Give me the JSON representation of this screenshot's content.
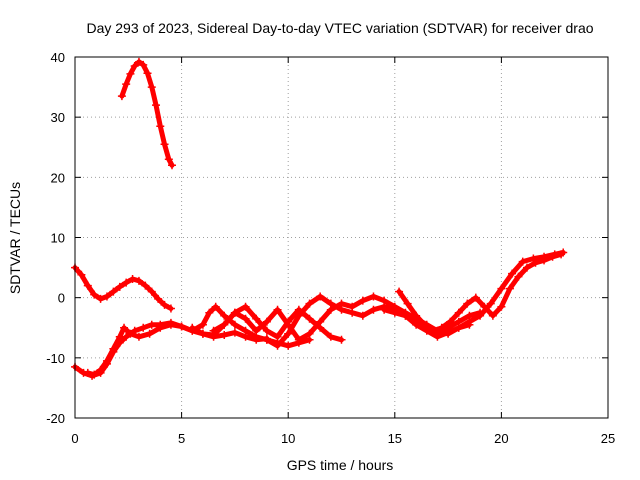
{
  "chart_data": {
    "type": "scatter",
    "title": "Day 293 of 2023, Sidereal Day-to-day VTEC variation (SDTVAR) for receiver drao",
    "xlabel": "GPS time / hours",
    "ylabel": "SDTVAR / TECUs",
    "xlim": [
      0,
      25
    ],
    "ylim": [
      -20,
      40
    ],
    "xticks": [
      0,
      5,
      10,
      15,
      20,
      25
    ],
    "yticks": [
      -20,
      -10,
      0,
      10,
      20,
      30,
      40
    ],
    "grid": true,
    "marker": "+",
    "color": "#ff0000",
    "series": [
      {
        "name": "arc-high",
        "x": [
          2.2,
          2.4,
          2.6,
          2.8,
          3.0,
          3.2,
          3.4,
          3.6,
          3.8,
          4.0,
          4.2,
          4.4,
          4.55
        ],
        "y": [
          33.5,
          35.5,
          37.2,
          38.5,
          39.2,
          38.7,
          37.3,
          35.0,
          32.0,
          28.5,
          25.5,
          23.0,
          22.0
        ]
      },
      {
        "name": "arc-early",
        "x": [
          0.0,
          0.3,
          0.6,
          0.9,
          1.2,
          1.5,
          1.8,
          2.1,
          2.4,
          2.7,
          3.0,
          3.3,
          3.6,
          3.9,
          4.2,
          4.5
        ],
        "y": [
          5.0,
          3.8,
          2.0,
          0.5,
          -0.2,
          0.2,
          1.0,
          1.8,
          2.5,
          3.1,
          2.8,
          2.0,
          1.0,
          -0.2,
          -1.2,
          -1.8
        ]
      },
      {
        "name": "arc-low-a",
        "x": [
          0.0,
          0.4,
          0.8,
          1.2,
          1.5,
          1.8,
          2.1,
          2.4,
          2.8,
          3.2,
          3.6,
          4.0,
          4.5,
          5.0,
          5.5,
          6.0,
          6.5,
          7.0,
          7.5,
          8.0,
          8.5,
          9.0
        ],
        "y": [
          -11.5,
          -12.5,
          -13.0,
          -12.5,
          -11.0,
          -9.0,
          -7.5,
          -6.5,
          -5.5,
          -5.0,
          -4.5,
          -4.5,
          -4.2,
          -4.8,
          -5.5,
          -6.0,
          -6.5,
          -6.2,
          -5.8,
          -6.5,
          -7.0,
          -6.8
        ]
      },
      {
        "name": "arc-low-b",
        "x": [
          0.6,
          0.9,
          1.2,
          1.5,
          1.8,
          2.1,
          2.3,
          2.6,
          3.0,
          3.5,
          4.0,
          4.5,
          5.0,
          5.5,
          6.0,
          6.3,
          6.6,
          7.0,
          7.5,
          8.0,
          8.5,
          9.0,
          9.5,
          10.0,
          10.5,
          11.0
        ],
        "y": [
          -12.5,
          -12.8,
          -12.0,
          -10.5,
          -8.5,
          -6.5,
          -5.0,
          -6.0,
          -6.5,
          -6.0,
          -5.0,
          -4.5,
          -4.8,
          -5.5,
          -4.5,
          -2.5,
          -1.5,
          -3.0,
          -4.5,
          -5.5,
          -6.5,
          -7.0,
          -7.5,
          -8.0,
          -7.5,
          -7.0
        ]
      },
      {
        "name": "arc-mid-a",
        "x": [
          5.5,
          6.0,
          6.5,
          7.0,
          7.5,
          8.0,
          8.5,
          9.0,
          9.5,
          10.0,
          10.5,
          11.0,
          11.5,
          12.0,
          12.5
        ],
        "y": [
          -5.0,
          -6.0,
          -6.2,
          -4.5,
          -2.5,
          -1.5,
          -3.5,
          -5.5,
          -6.5,
          -4.0,
          -2.0,
          -3.5,
          -5.0,
          -6.5,
          -7.0
        ]
      },
      {
        "name": "arc-mid-b",
        "x": [
          6.5,
          7.0,
          7.5,
          8.0,
          8.5,
          9.0,
          9.5,
          10.0,
          10.5,
          11.0,
          11.5,
          12.0,
          12.5,
          13.0,
          13.5,
          14.0,
          14.5,
          15.0,
          15.5,
          16.0,
          16.5,
          17.0,
          17.5,
          18.0,
          18.5,
          19.0
        ],
        "y": [
          -5.5,
          -4.5,
          -2.5,
          -3.5,
          -5.5,
          -4.0,
          -2.0,
          -4.5,
          -7.0,
          -6.0,
          -4.0,
          -2.0,
          -1.0,
          -1.5,
          -0.5,
          0.2,
          -0.5,
          -1.5,
          -2.5,
          -3.5,
          -4.5,
          -5.5,
          -5.0,
          -4.0,
          -3.0,
          -2.5
        ]
      },
      {
        "name": "arc-mid-c",
        "x": [
          9.0,
          9.5,
          10.0,
          10.5,
          11.0,
          11.5,
          12.0,
          12.5,
          13.0,
          13.5,
          14.0,
          14.5,
          15.0,
          15.5,
          16.0,
          16.5,
          17.0,
          17.5,
          18.0,
          18.5
        ],
        "y": [
          -7.0,
          -8.0,
          -6.0,
          -3.0,
          -1.0,
          0.2,
          -1.0,
          -2.0,
          -2.5,
          -3.0,
          -2.0,
          -1.5,
          -1.8,
          -3.0,
          -4.5,
          -5.5,
          -6.5,
          -5.8,
          -5.0,
          -4.5
        ]
      },
      {
        "name": "arc-late-a",
        "x": [
          14.5,
          15.0,
          15.5,
          16.0,
          16.5,
          17.0,
          17.5,
          18.0,
          18.5,
          19.0,
          19.5,
          20.0,
          20.5,
          21.0,
          21.5,
          22.0,
          22.5,
          22.9
        ],
        "y": [
          -2.0,
          -2.5,
          -3.0,
          -4.0,
          -5.0,
          -5.8,
          -6.0,
          -5.0,
          -4.0,
          -3.0,
          -1.0,
          1.5,
          4.0,
          6.0,
          6.5,
          6.8,
          7.2,
          7.5
        ]
      },
      {
        "name": "arc-late-b",
        "x": [
          15.2,
          15.6,
          16.0,
          16.4,
          16.8,
          17.2,
          17.6,
          18.0,
          18.4,
          18.8,
          19.2,
          19.6,
          20.0,
          20.4,
          20.8,
          21.2,
          21.6,
          22.0,
          22.4,
          22.8
        ],
        "y": [
          1.0,
          -1.0,
          -3.0,
          -4.5,
          -5.5,
          -5.0,
          -4.0,
          -2.5,
          -1.0,
          0.0,
          -1.5,
          -3.0,
          -1.5,
          1.5,
          3.5,
          5.0,
          5.8,
          6.2,
          6.8,
          7.2
        ]
      }
    ]
  }
}
